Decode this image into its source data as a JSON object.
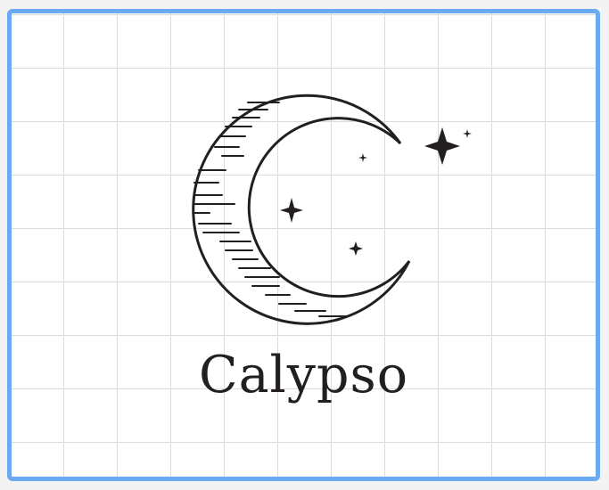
{
  "brand": {
    "name": "Calypso"
  },
  "icons": {
    "moon": "crescent-moon-icon",
    "stars": "sparkle-star-icon"
  },
  "colors": {
    "ink": "#231f20",
    "frame_border": "#6aaaf0",
    "grid_line": "#dcdcdc",
    "background": "#ffffff"
  }
}
